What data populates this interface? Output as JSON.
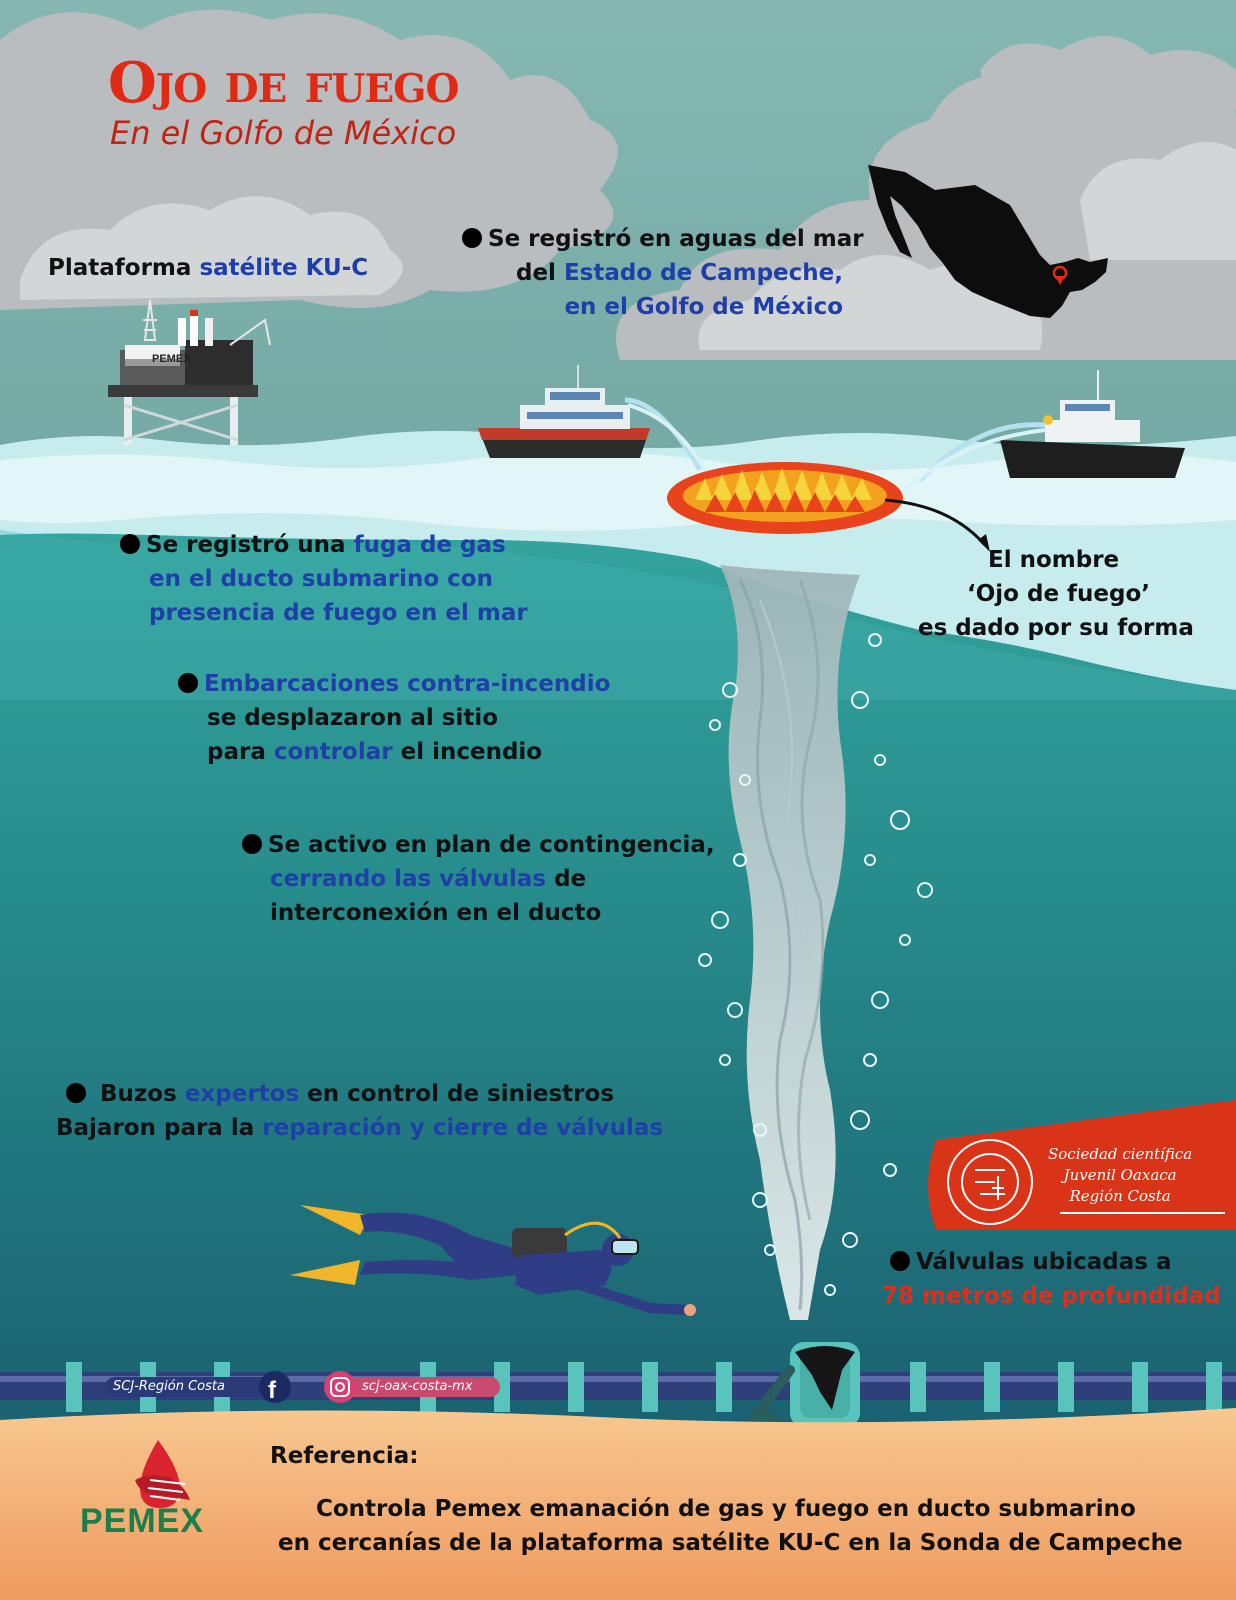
{
  "title": {
    "main": "Ojo de fuego",
    "sub": "En el Golfo de México"
  },
  "platform": {
    "label": "Plataforma",
    "name": "satélite KU-C"
  },
  "location": {
    "line1": "Se registró en aguas del mar",
    "line2_pre": "del",
    "line2_blue": "Estado de Campeche,",
    "line3_blue": "en el Golfo de México"
  },
  "leak": {
    "line1_pre": "Se registró una",
    "line1_blue": "fuga de gas",
    "line2_blue": "en el ducto submarino con",
    "line3_blue": "presencia de fuego en el mar"
  },
  "name_note": {
    "line1": "El nombre",
    "line2": "‘Ojo de fuego’",
    "line3": "es dado por su forma"
  },
  "boats": {
    "line1_blue": "Embarcaciones contra-incendio",
    "line2": "se desplazaron al sitio",
    "line3_pre": "para",
    "line3_blue": "controlar",
    "line3_post": "el incendio"
  },
  "contingency": {
    "line1": "Se activo en plan de contingencia,",
    "line2_blue": "cerrando las válvulas",
    "line2_post": "de",
    "line3": "interconexión en el ducto"
  },
  "divers": {
    "line1_pre": "Buzos",
    "line1_blue": "expertos",
    "line1_post": "en control de siniestros",
    "line2_pre": "Bajaron para la",
    "line2_blue": "reparación y cierre de válvulas"
  },
  "valves": {
    "line1": "Válvulas ubicadas a",
    "line2_red": "78 metros de profundidad"
  },
  "scj": {
    "line1": "Sociedad científica",
    "line2": "Juvenil Oaxaca",
    "line3": "Región Costa"
  },
  "social": {
    "facebook": "SCJ-Región Costa",
    "instagram": "scj-oax-costa-mx"
  },
  "reference": {
    "heading": "Referencia:",
    "line1": "Controla Pemex emanación de gas y fuego en ducto submarino",
    "line2": "en cercanías de la plataforma satélite KU-C en la Sonda de Campeche"
  },
  "logo": {
    "pemex": "PEMEX"
  },
  "colors": {
    "sky": "#7fb2ad",
    "sea_deep": "#1b6572",
    "fire": "#e8431c",
    "sand": "#f0a46a",
    "blue_text": "#1f3fa8",
    "red_text": "#d9301f"
  }
}
